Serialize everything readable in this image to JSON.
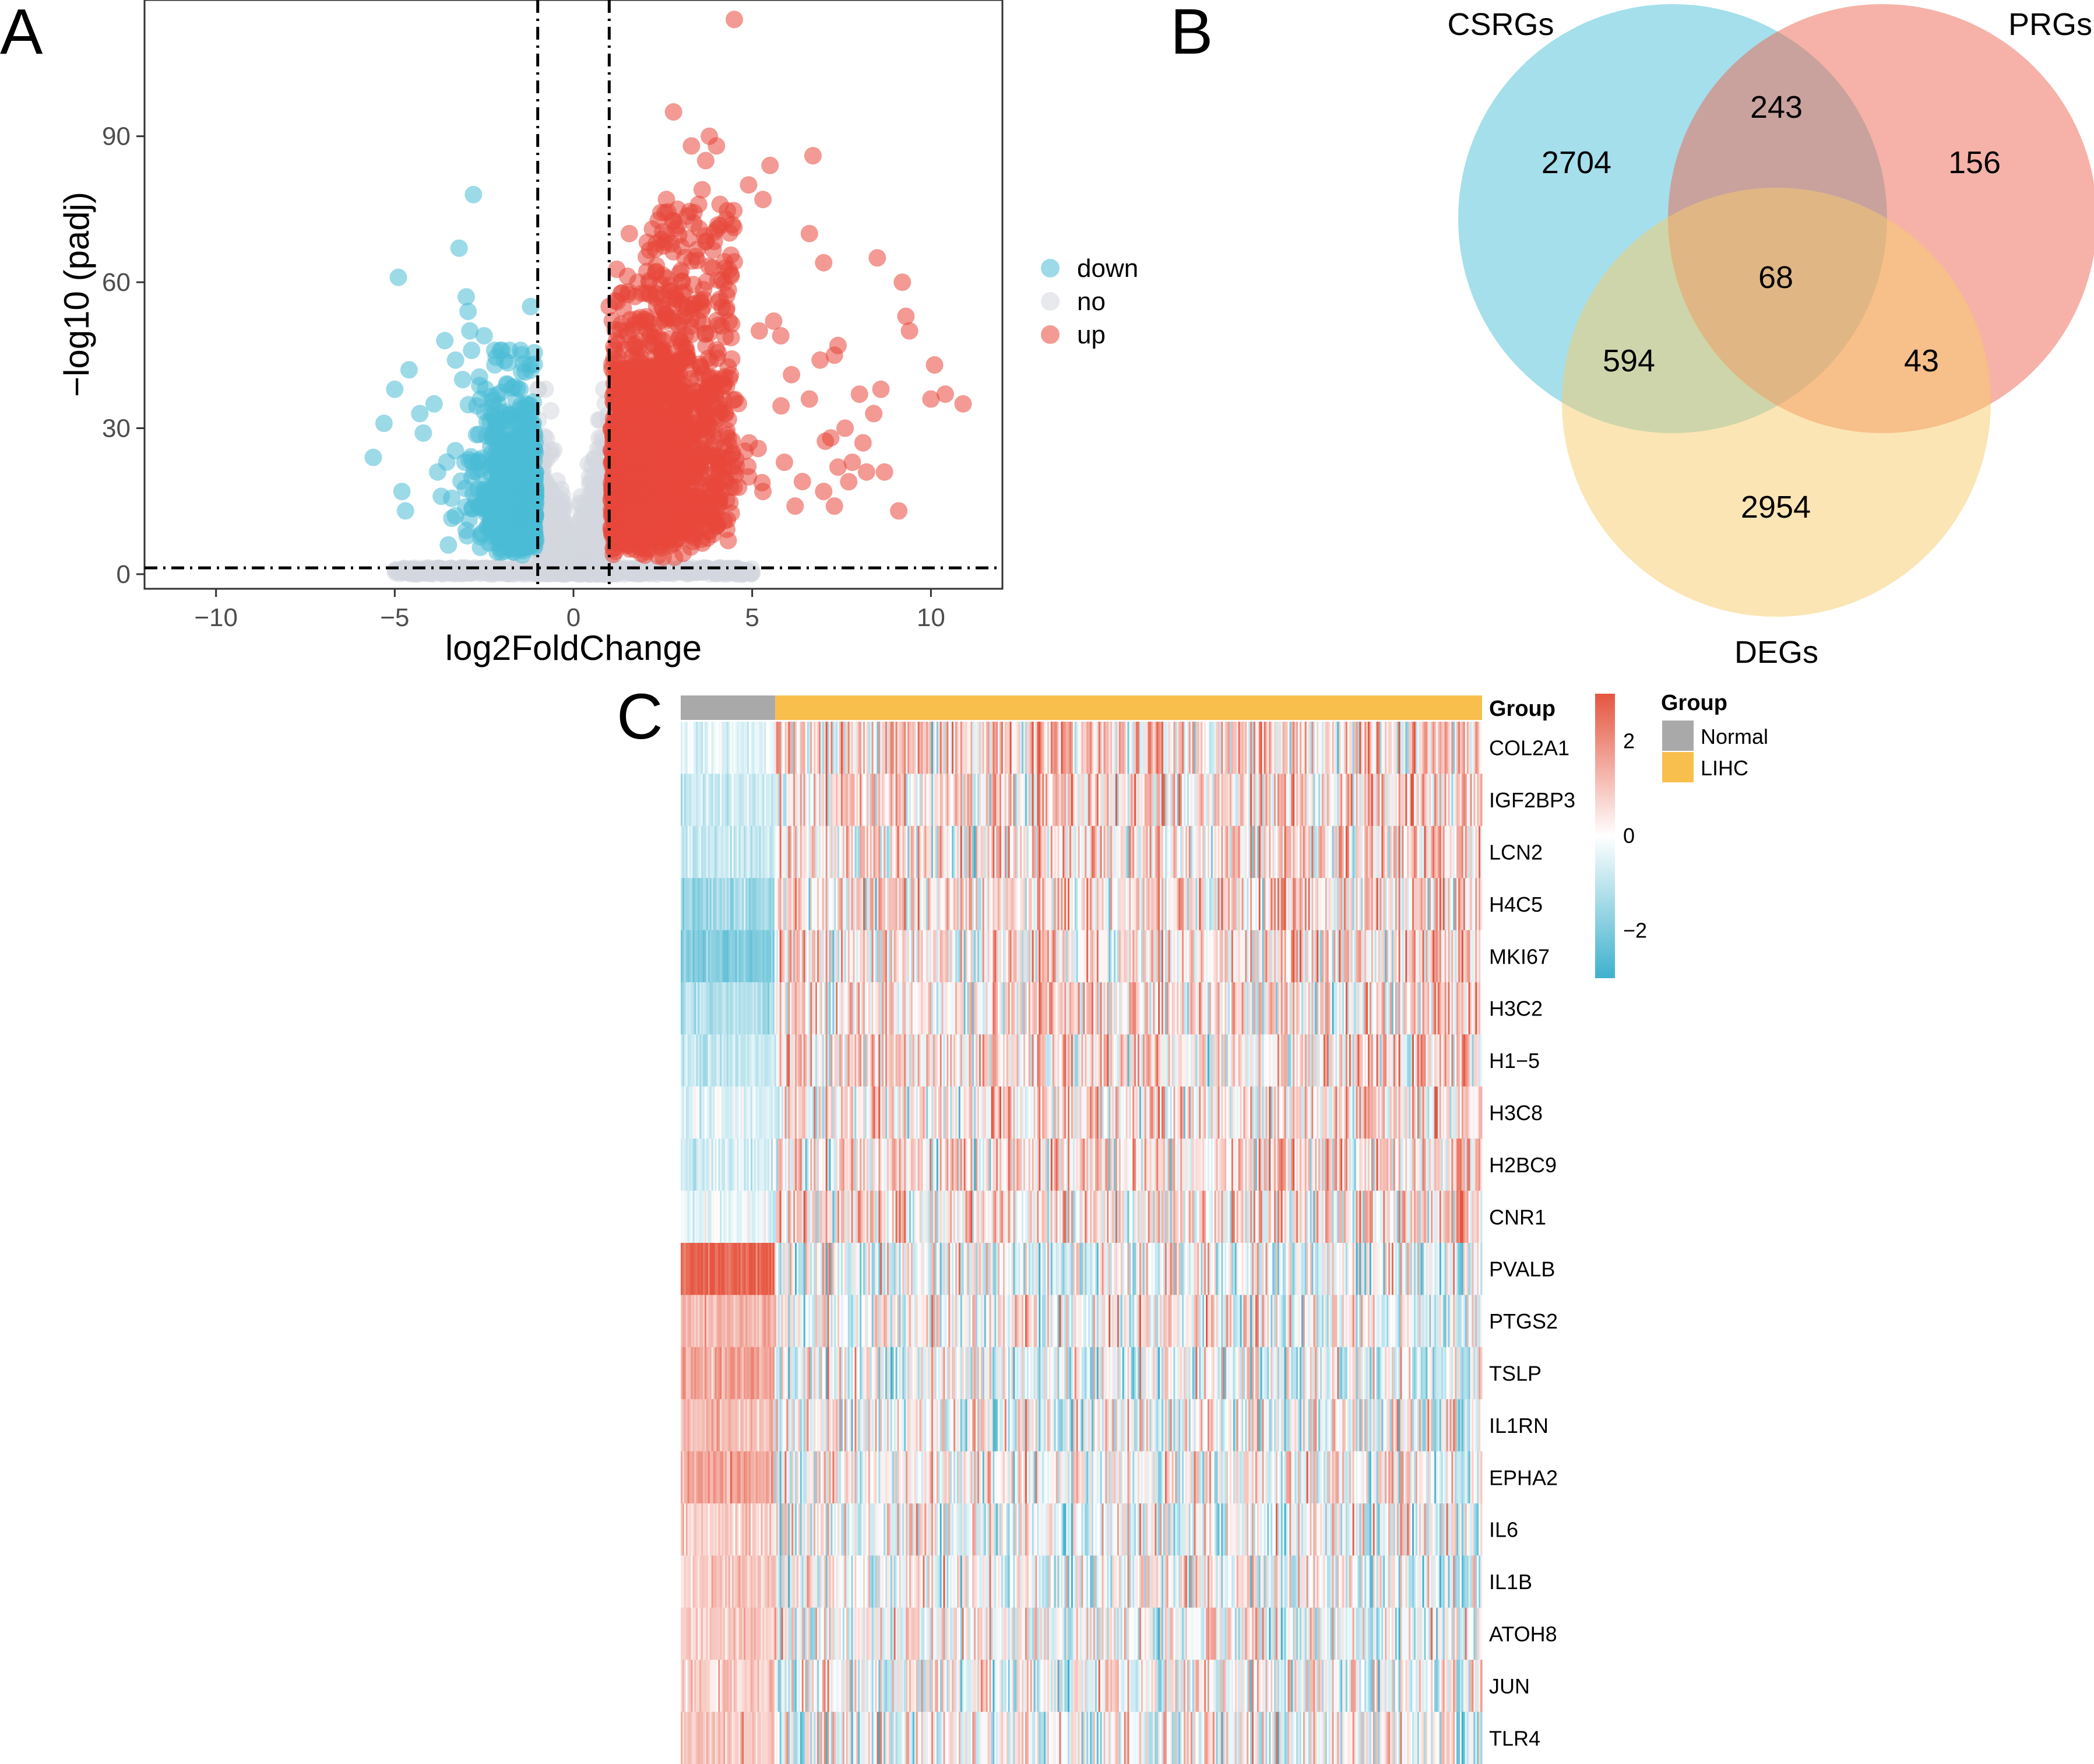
{
  "panels": {
    "a": "A",
    "b": "B",
    "c": "C"
  },
  "chart_data": [
    {
      "type": "scatter",
      "panel": "A",
      "title": "",
      "xlabel": "log2FoldChange",
      "ylabel": "−log10 (padj)",
      "xlim": [
        -12,
        12
      ],
      "ylim": [
        -3,
        118
      ],
      "xticks": [
        -10,
        -5,
        0,
        5,
        10
      ],
      "xtick_labels": [
        "−10",
        "−5",
        "0",
        "5",
        "10"
      ],
      "yticks": [
        0,
        30,
        60,
        90
      ],
      "ytick_labels": [
        "0",
        "30",
        "60",
        "90"
      ],
      "thresholds": {
        "log2fc": [
          -1,
          1
        ],
        "neg_log10_padj": 1.3
      },
      "legend": {
        "position": "right",
        "entries": [
          {
            "label": "down",
            "color": "#4BBBD6"
          },
          {
            "label": "no",
            "color": "#D3D7DF"
          },
          {
            "label": "up",
            "color": "#E8473A"
          }
        ]
      },
      "series": [
        {
          "name": "down",
          "color": "#4BBBD6",
          "points": [
            [
              -5.6,
              24
            ],
            [
              -5.3,
              31
            ],
            [
              -5.0,
              38
            ],
            [
              -4.9,
              61
            ],
            [
              -4.8,
              17
            ],
            [
              -4.7,
              13
            ],
            [
              -4.6,
              42
            ],
            [
              -4.3,
              33
            ],
            [
              -4.2,
              29
            ],
            [
              -3.9,
              35
            ],
            [
              -3.8,
              21
            ],
            [
              -3.7,
              16
            ],
            [
              -3.6,
              48
            ],
            [
              -3.3,
              44
            ],
            [
              -3.2,
              67
            ],
            [
              -3.1,
              40
            ],
            [
              -3.0,
              57
            ],
            [
              -2.95,
              54
            ],
            [
              -2.9,
              50
            ],
            [
              -2.85,
              46
            ],
            [
              -2.8,
              78
            ],
            [
              -2.6,
              36
            ],
            [
              -2.5,
              49
            ],
            [
              -2.2,
              43
            ],
            [
              -1.2,
              55
            ],
            [
              -3.3,
              12
            ],
            [
              -3.5,
              6
            ],
            [
              -3.0,
              9
            ],
            [
              -2.0,
              27
            ],
            [
              -1.5,
              21
            ]
          ]
        },
        {
          "name": "no",
          "color": "#D3D7DF",
          "points": []
        },
        {
          "name": "up",
          "color": "#E8473A",
          "points": [
            [
              4.5,
              114
            ],
            [
              2.8,
              95
            ],
            [
              3.8,
              90
            ],
            [
              3.3,
              88
            ],
            [
              4.0,
              88
            ],
            [
              3.7,
              85
            ],
            [
              5.5,
              84
            ],
            [
              6.7,
              86
            ],
            [
              4.9,
              80
            ],
            [
              5.3,
              77
            ],
            [
              2.6,
              77
            ],
            [
              3.6,
              79
            ],
            [
              3.5,
              76
            ],
            [
              4.1,
              76
            ],
            [
              6.6,
              70
            ],
            [
              7.0,
              64
            ],
            [
              8.5,
              65
            ],
            [
              9.2,
              60
            ],
            [
              9.3,
              53
            ],
            [
              9.4,
              50
            ],
            [
              10.1,
              43
            ],
            [
              10.4,
              37
            ],
            [
              10.9,
              35
            ],
            [
              10.0,
              36
            ],
            [
              8.6,
              38
            ],
            [
              8.0,
              37
            ],
            [
              8.4,
              33
            ],
            [
              7.4,
              47
            ],
            [
              7.3,
              45
            ],
            [
              6.9,
              44
            ],
            [
              5.2,
              50
            ],
            [
              5.6,
              52
            ],
            [
              5.8,
              49
            ],
            [
              6.1,
              41
            ],
            [
              6.6,
              36
            ],
            [
              7.2,
              28
            ],
            [
              7.6,
              30
            ],
            [
              8.1,
              27
            ],
            [
              7.8,
              23
            ],
            [
              7.7,
              19
            ],
            [
              8.2,
              21
            ],
            [
              7.4,
              22
            ],
            [
              7.0,
              17
            ],
            [
              7.3,
              14
            ],
            [
              9.1,
              13
            ],
            [
              8.7,
              21
            ],
            [
              5.3,
              17
            ],
            [
              5.9,
              23
            ],
            [
              6.2,
              14
            ],
            [
              4.9,
              20
            ],
            [
              1.0,
              55
            ],
            [
              1.2,
              48
            ],
            [
              1.8,
              60
            ],
            [
              2.3,
              62
            ],
            [
              3.1,
              58
            ],
            [
              3.9,
              63
            ]
          ]
        }
      ]
    },
    {
      "type": "venn",
      "panel": "B",
      "sets": [
        {
          "name": "CSRGs",
          "color": "#4BBFD8"
        },
        {
          "name": "PRGs",
          "color": "#EE6651"
        },
        {
          "name": "DEGs",
          "color": "#F8CB69"
        }
      ],
      "regions": [
        {
          "sets": [
            "CSRGs"
          ],
          "count": "2704"
        },
        {
          "sets": [
            "PRGs"
          ],
          "count": "156"
        },
        {
          "sets": [
            "DEGs"
          ],
          "count": "2954"
        },
        {
          "sets": [
            "CSRGs",
            "PRGs"
          ],
          "count": "243"
        },
        {
          "sets": [
            "CSRGs",
            "DEGs"
          ],
          "count": "594"
        },
        {
          "sets": [
            "PRGs",
            "DEGs"
          ],
          "count": "43"
        },
        {
          "sets": [
            "CSRGs",
            "PRGs",
            "DEGs"
          ],
          "count": "68"
        }
      ]
    },
    {
      "type": "heatmap",
      "panel": "C",
      "annotation_title": "Group",
      "genes": [
        "COL2A1",
        "IGF2BP3",
        "LCN2",
        "H4C5",
        "MKI67",
        "H3C2",
        "H1−5",
        "H3C8",
        "H2BC9",
        "CNR1",
        "PVALB",
        "PTGS2",
        "TSLP",
        "IL1RN",
        "EPHA2",
        "IL6",
        "IL1B",
        "ATOH8",
        "JUN",
        "TLR4"
      ],
      "groups": [
        {
          "name": "Normal",
          "color": "#A9A9A9",
          "fraction": 0.118
        },
        {
          "name": "LIHC",
          "color": "#F9BF4C",
          "fraction": 0.882
        }
      ],
      "row_bias_normal": [
        -0.4,
        -0.8,
        -0.9,
        -1.5,
        -1.9,
        -1.2,
        -0.9,
        -0.5,
        -0.6,
        -0.3,
        2.8,
        1.2,
        1.6,
        1.2,
        1.5,
        0.8,
        0.9,
        0.9,
        0.8,
        1.0
      ],
      "row_bias_tumor": [
        0.6,
        0.7,
        0.5,
        0.5,
        0.5,
        0.5,
        0.5,
        0.4,
        0.5,
        0.5,
        -0.2,
        -0.1,
        -0.2,
        -0.1,
        0.0,
        -0.1,
        -0.1,
        -0.1,
        -0.1,
        -0.1
      ],
      "color_scale": {
        "title": "",
        "min": -3,
        "max": 3,
        "ticks": [
          2,
          0,
          -2
        ],
        "tick_labels": [
          "2",
          "0",
          "−2"
        ],
        "low": "#3EB1CD",
        "mid": "#FFFFFF",
        "high": "#E5553F"
      }
    }
  ]
}
